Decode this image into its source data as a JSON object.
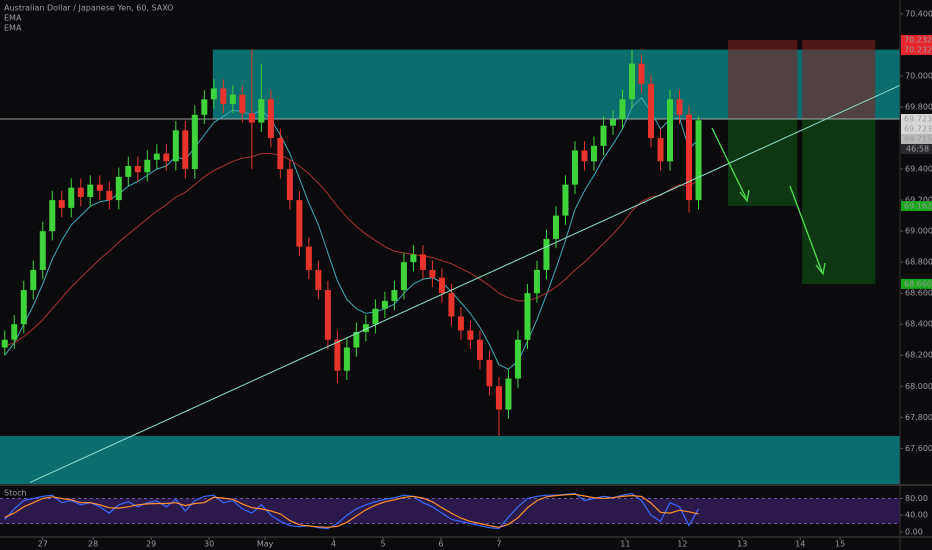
{
  "chart_data": {
    "type": "candlestick",
    "title": "Australian Dollar / Japanese Yen, 60, SAXO",
    "open": [
      68.25,
      68.3,
      68.4,
      68.62,
      68.75,
      69.0,
      69.2,
      69.15,
      69.28,
      69.22,
      69.3,
      69.26,
      69.2,
      69.35,
      69.42,
      69.38,
      69.46,
      69.5,
      69.45,
      69.65,
      69.4,
      69.75,
      69.85,
      69.92,
      69.82,
      69.88,
      69.76,
      69.7,
      69.85,
      69.6,
      69.4,
      69.2,
      68.9,
      68.75,
      68.62,
      68.3,
      68.1,
      68.25,
      68.35,
      68.4,
      68.5,
      68.55,
      68.62,
      68.8,
      68.85,
      68.75,
      68.7,
      68.6,
      68.45,
      68.36,
      68.3,
      68.17,
      68.0,
      67.85,
      68.05,
      68.3,
      68.6,
      68.75,
      68.95,
      69.1,
      69.3,
      69.52,
      69.45,
      69.55,
      69.68,
      69.72,
      69.85,
      70.08,
      69.95,
      69.6,
      69.45,
      69.85,
      69.75,
      69.2
    ],
    "high": [
      68.36,
      68.46,
      68.68,
      68.81,
      69.06,
      69.26,
      69.26,
      69.34,
      69.34,
      69.36,
      69.36,
      69.32,
      69.41,
      69.48,
      69.48,
      69.52,
      69.56,
      69.56,
      69.71,
      69.71,
      69.81,
      69.91,
      69.98,
      69.98,
      69.94,
      69.94,
      70.17,
      70.08,
      69.91,
      69.66,
      69.46,
      69.26,
      68.96,
      68.81,
      68.68,
      68.36,
      68.31,
      68.41,
      68.46,
      68.56,
      68.61,
      68.68,
      68.86,
      68.91,
      68.91,
      68.81,
      68.76,
      68.66,
      68.51,
      68.42,
      68.36,
      68.23,
      68.06,
      68.11,
      68.36,
      68.66,
      68.81,
      69.01,
      69.16,
      69.36,
      69.58,
      69.58,
      69.61,
      69.74,
      69.78,
      69.91,
      70.17,
      70.14,
      70.01,
      69.66,
      69.91,
      69.91,
      69.81,
      69.74
    ],
    "low": [
      68.2,
      68.24,
      68.34,
      68.56,
      68.69,
      68.94,
      69.09,
      69.09,
      69.16,
      69.16,
      69.2,
      69.14,
      69.14,
      69.29,
      69.32,
      69.32,
      69.4,
      69.39,
      69.39,
      69.34,
      69.34,
      69.69,
      69.79,
      69.76,
      69.76,
      69.7,
      69.4,
      69.64,
      69.54,
      69.34,
      69.14,
      68.84,
      68.69,
      68.56,
      68.24,
      68.02,
      68.04,
      68.19,
      68.29,
      68.34,
      68.44,
      68.49,
      68.56,
      68.74,
      68.69,
      68.64,
      68.54,
      68.39,
      68.3,
      68.24,
      68.11,
      67.94,
      67.68,
      67.79,
      67.99,
      68.24,
      68.54,
      68.69,
      68.89,
      69.04,
      69.24,
      69.39,
      69.39,
      69.49,
      69.62,
      69.66,
      69.79,
      69.89,
      69.54,
      69.39,
      69.39,
      69.69,
      69.12,
      69.14
    ],
    "close": [
      68.3,
      68.4,
      68.62,
      68.75,
      69.0,
      69.2,
      69.15,
      69.28,
      69.22,
      69.3,
      69.26,
      69.2,
      69.35,
      69.42,
      69.38,
      69.46,
      69.5,
      69.45,
      69.65,
      69.4,
      69.75,
      69.85,
      69.92,
      69.82,
      69.88,
      69.76,
      69.7,
      69.85,
      69.6,
      69.4,
      69.2,
      68.9,
      68.75,
      68.62,
      68.3,
      68.1,
      68.25,
      68.35,
      68.4,
      68.5,
      68.55,
      68.62,
      68.8,
      68.85,
      68.75,
      68.7,
      68.6,
      68.45,
      68.36,
      68.3,
      68.17,
      68.0,
      67.85,
      68.05,
      68.3,
      68.6,
      68.75,
      68.95,
      69.1,
      69.3,
      69.52,
      69.45,
      69.55,
      69.68,
      69.72,
      69.85,
      70.08,
      69.95,
      69.6,
      69.45,
      69.85,
      69.75,
      69.2,
      69.715
    ],
    "up_color": "#3ed33a",
    "down_color": "#e8342c",
    "series": [
      {
        "name": "EMA",
        "color": "#3fa9b8",
        "values": [
          68.2,
          68.28,
          68.4,
          68.52,
          68.66,
          68.82,
          68.94,
          69.04,
          69.1,
          69.16,
          69.19,
          69.2,
          69.24,
          69.29,
          69.32,
          69.36,
          69.4,
          69.42,
          69.48,
          69.46,
          69.54,
          69.62,
          69.7,
          69.74,
          69.78,
          69.77,
          69.75,
          69.78,
          69.72,
          69.62,
          69.5,
          69.34,
          69.18,
          69.04,
          68.86,
          68.68,
          68.56,
          68.5,
          68.47,
          68.48,
          68.5,
          68.53,
          68.6,
          68.66,
          68.69,
          68.7,
          68.67,
          68.61,
          68.54,
          68.47,
          68.38,
          68.27,
          68.14,
          68.11,
          68.16,
          68.29,
          68.43,
          68.59,
          68.76,
          68.94,
          69.14,
          69.26,
          69.36,
          69.47,
          69.56,
          69.66,
          69.8,
          69.86,
          69.77,
          69.66,
          69.72,
          69.73,
          69.53,
          69.59
        ]
      },
      {
        "name": "EMA",
        "color": "#a83434",
        "values": [
          68.26,
          68.28,
          68.32,
          68.37,
          68.43,
          68.5,
          68.57,
          68.64,
          68.7,
          68.76,
          68.82,
          68.87,
          68.93,
          68.98,
          69.03,
          69.08,
          69.13,
          69.17,
          69.22,
          69.25,
          69.3,
          69.35,
          69.39,
          69.42,
          69.45,
          69.47,
          69.48,
          69.5,
          69.5,
          69.49,
          69.46,
          69.42,
          69.37,
          69.31,
          69.24,
          69.16,
          69.09,
          69.03,
          68.98,
          68.94,
          68.9,
          68.87,
          68.86,
          68.85,
          68.84,
          68.83,
          68.81,
          68.79,
          68.76,
          68.73,
          68.69,
          68.65,
          68.6,
          68.57,
          68.55,
          68.55,
          68.57,
          68.6,
          68.64,
          68.69,
          68.75,
          68.8,
          68.86,
          68.92,
          68.98,
          69.05,
          69.13,
          69.19,
          69.22,
          69.23,
          69.27,
          69.3,
          69.29,
          69.33
        ]
      }
    ],
    "xlim": [
      -0.5,
      94.2
    ],
    "xticks": [
      {
        "value": 4,
        "label": "27"
      },
      {
        "value": 9.3,
        "label": "28"
      },
      {
        "value": 15.4,
        "label": "29"
      },
      {
        "value": 21.5,
        "label": "30"
      },
      {
        "value": 27.4,
        "label": "May"
      },
      {
        "value": 34.6,
        "label": "4"
      },
      {
        "value": 39.8,
        "label": "5"
      },
      {
        "value": 45.9,
        "label": "6"
      },
      {
        "value": 52,
        "label": "7"
      },
      {
        "value": 65.3,
        "label": "11"
      },
      {
        "value": 71.3,
        "label": "12"
      },
      {
        "value": 77.6,
        "label": "13"
      },
      {
        "value": 83.7,
        "label": "14"
      },
      {
        "value": 87.9,
        "label": "15"
      }
    ],
    "ylim": [
      67.37,
      70.49
    ],
    "yticks": [
      {
        "value": 70.4,
        "label": "70.400"
      },
      {
        "value": 70.2,
        "label": "70.200"
      },
      {
        "value": 70,
        "label": "70.000"
      },
      {
        "value": 69.8,
        "label": "69.800"
      },
      {
        "value": 69.6,
        "label": "69.600"
      },
      {
        "value": 69.4,
        "label": "69.400"
      },
      {
        "value": 69.2,
        "label": "69.200"
      },
      {
        "value": 69,
        "label": "69.000"
      },
      {
        "value": 68.8,
        "label": "68.800"
      },
      {
        "value": 68.6,
        "label": "68.600"
      },
      {
        "value": 68.4,
        "label": "68.400"
      },
      {
        "value": 68.2,
        "label": "68.200"
      },
      {
        "value": 68,
        "label": "68.000"
      },
      {
        "value": 67.8,
        "label": "67.800"
      },
      {
        "value": 67.6,
        "label": "67.600"
      }
    ],
    "zones": [
      {
        "top": 70.17,
        "bottom": 69.72,
        "start": 21.9,
        "color": "#0a8080"
      },
      {
        "top": 67.68,
        "bottom": 67.37,
        "start": -0.5,
        "color": "#0a8080"
      }
    ],
    "trendline": {
      "x": [
        2.66,
        94.2
      ],
      "y": [
        67.38,
        69.94
      ],
      "color": "#8fe0cc"
    },
    "hline": {
      "value": 69.723,
      "color": "#c8c8c8"
    },
    "positions": [
      {
        "start": 76.1,
        "end": 83.4,
        "entry": 69.723,
        "stop": 70.232,
        "target": 69.162
      },
      {
        "start": 83.9,
        "end": 91.6,
        "entry": 69.723,
        "stop": 70.232,
        "target": 68.66
      }
    ],
    "price_labels": [
      {
        "value": 70.232,
        "color": "#e8242c"
      },
      {
        "value": 70.232,
        "color": "#e8242c"
      },
      {
        "value": 69.723,
        "color": "#d8d8d8"
      },
      {
        "value": 69.723,
        "color": "#d8d8d8"
      },
      {
        "value": 69.715,
        "color": "#b8b8b8"
      },
      {
        "value": 69.162,
        "color": "#18a818"
      },
      {
        "value": 68.66,
        "label": "68.660",
        "color": "#18a818"
      }
    ],
    "countdown": "46:58",
    "indicator": {
      "name": "Stoch",
      "ylim": [
        -10,
        110
      ],
      "yticks": [
        {
          "value": 80,
          "label": "80.00"
        },
        {
          "value": 40,
          "label": "40.00"
        },
        {
          "value": 0,
          "label": "0.00"
        }
      ],
      "bands": [
        20,
        80
      ],
      "series": [
        {
          "color": "#3a6bff",
          "values": [
            30,
            55,
            75,
            80,
            85,
            88,
            70,
            75,
            65,
            70,
            60,
            45,
            65,
            72,
            60,
            70,
            74,
            60,
            78,
            50,
            75,
            85,
            88,
            70,
            75,
            55,
            45,
            65,
            40,
            25,
            15,
            12,
            15,
            10,
            8,
            20,
            40,
            55,
            65,
            72,
            78,
            82,
            88,
            85,
            70,
            60,
            45,
            30,
            25,
            20,
            15,
            10,
            8,
            35,
            60,
            80,
            85,
            88,
            88,
            90,
            92,
            75,
            80,
            85,
            82,
            88,
            92,
            75,
            40,
            25,
            70,
            60,
            15,
            55
          ]
        },
        {
          "color": "#ff9030",
          "values": [
            35,
            45,
            60,
            70,
            80,
            84,
            80,
            77,
            70,
            70,
            65,
            58,
            57,
            60,
            65,
            67,
            68,
            68,
            70,
            63,
            68,
            70,
            83,
            81,
            78,
            67,
            58,
            55,
            50,
            43,
            27,
            17,
            14,
            12,
            11,
            13,
            23,
            38,
            53,
            64,
            72,
            77,
            83,
            85,
            81,
            72,
            58,
            45,
            33,
            25,
            20,
            15,
            11,
            18,
            34,
            58,
            75,
            84,
            87,
            89,
            90,
            86,
            82,
            80,
            82,
            85,
            87,
            85,
            69,
            47,
            45,
            52,
            48,
            43
          ]
        }
      ]
    }
  }
}
